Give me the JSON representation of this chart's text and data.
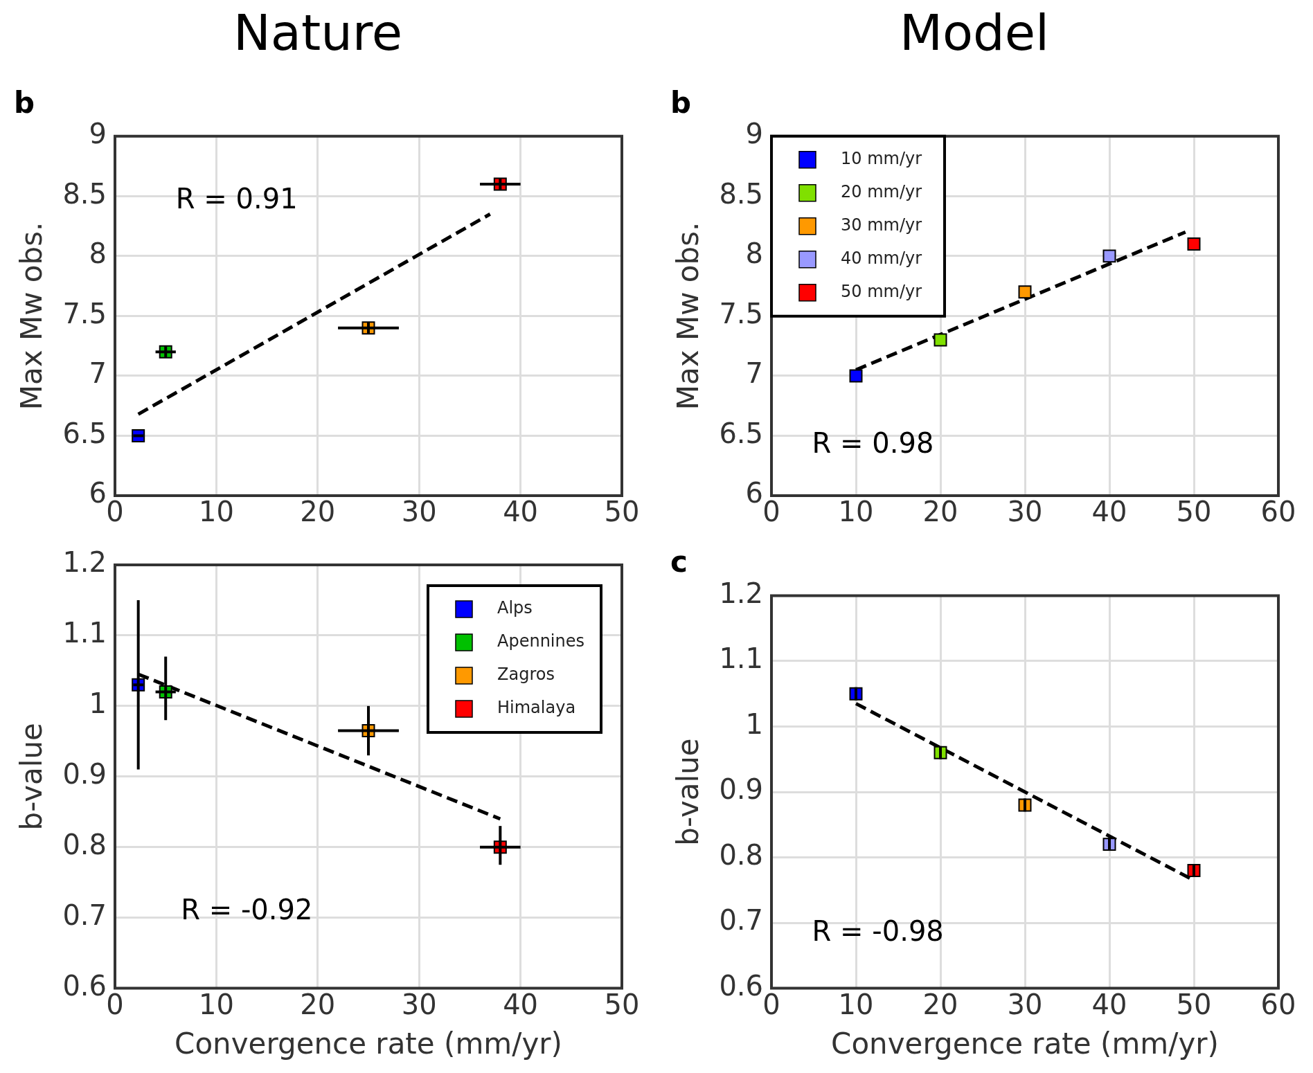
{
  "chart_data": [
    {
      "type": "scatter",
      "title": "Nature",
      "subtitle": "b",
      "ylabel": "Max Mw obs.",
      "annotations": [
        "R = 0.91"
      ],
      "xlim": [
        0,
        50
      ],
      "xticks": [
        0,
        10,
        20,
        30,
        40,
        50
      ],
      "ylim": [
        6,
        9
      ],
      "yticks": [
        6,
        6.5,
        7,
        7.5,
        8,
        8.5,
        9
      ],
      "grid": true,
      "marker": "square",
      "series": [
        {
          "color": "#0000ff",
          "x": [
            2.3
          ],
          "values": [
            6.5
          ],
          "xerrors": [
            0.5
          ]
        },
        {
          "color": "#00c000",
          "x": [
            5
          ],
          "values": [
            7.2
          ],
          "xerrors": [
            1
          ],
          "errors": [
            0.05
          ]
        },
        {
          "color": "#ff9900",
          "x": [
            25
          ],
          "values": [
            7.4
          ],
          "xerrors": [
            3
          ],
          "errors": [
            0.05
          ]
        },
        {
          "color": "#ff0000",
          "x": [
            38
          ],
          "values": [
            8.6
          ],
          "xerrors": [
            2
          ],
          "errors": [
            0.05
          ]
        },
        {
          "type": "line",
          "color": "#000000",
          "marker": "none",
          "line_style": "dashed",
          "x": [
            2.3,
            37
          ],
          "values": [
            6.68,
            8.35
          ]
        }
      ]
    },
    {
      "type": "scatter",
      "title": "Model",
      "subtitle": "b",
      "ylabel": "Max Mw obs.",
      "annotations": [
        "R = 0.98"
      ],
      "xlim": [
        0,
        60
      ],
      "xticks": [
        0,
        10,
        20,
        30,
        40,
        50,
        60
      ],
      "ylim": [
        6,
        9
      ],
      "yticks": [
        6,
        6.5,
        7,
        7.5,
        8,
        8.5,
        9
      ],
      "grid": true,
      "marker": "square",
      "legend": "top left",
      "series": [
        {
          "name": "10 mm/yr",
          "color": "#0000ff",
          "x": [
            10
          ],
          "values": [
            7.0
          ]
        },
        {
          "name": "20 mm/yr",
          "color": "#80e000",
          "x": [
            20
          ],
          "values": [
            7.3
          ]
        },
        {
          "name": "30 mm/yr",
          "color": "#ff9900",
          "x": [
            30
          ],
          "values": [
            7.7
          ]
        },
        {
          "name": "40 mm/yr",
          "color": "#9999ff",
          "x": [
            40
          ],
          "values": [
            8.0
          ]
        },
        {
          "name": "50 mm/yr",
          "color": "#ff0000",
          "x": [
            50
          ],
          "values": [
            8.1
          ]
        },
        {
          "type": "line",
          "color": "#000000",
          "marker": "none",
          "line_style": "dashed",
          "x": [
            10,
            49
          ],
          "values": [
            7.05,
            8.2
          ]
        }
      ]
    },
    {
      "type": "scatter",
      "xlabel": "Convergence rate (mm/yr)",
      "ylabel": "b-value",
      "annotations": [
        "R = -0.92"
      ],
      "xlim": [
        0,
        50
      ],
      "xticks": [
        0,
        10,
        20,
        30,
        40,
        50
      ],
      "ylim": [
        0.6,
        1.2
      ],
      "yticks": [
        0.6,
        0.7,
        0.8,
        0.9,
        1,
        1.1,
        1.2
      ],
      "grid": true,
      "marker": "square",
      "legend": "top right",
      "series": [
        {
          "name": "Alps",
          "color": "#0000ff",
          "x": [
            2.3
          ],
          "values": [
            1.03
          ],
          "xerrors": [
            0.5
          ],
          "errors": [
            [
              0.91,
              1.15
            ]
          ]
        },
        {
          "name": "Apennines",
          "color": "#00c000",
          "x": [
            5
          ],
          "values": [
            1.02
          ],
          "xerrors": [
            1
          ],
          "errors": [
            [
              0.98,
              1.07
            ]
          ]
        },
        {
          "name": "Zagros",
          "color": "#ff9900",
          "x": [
            25
          ],
          "values": [
            0.965
          ],
          "xerrors": [
            3
          ],
          "errors": [
            [
              0.93,
              1.0
            ]
          ]
        },
        {
          "name": "Himalaya",
          "color": "#ff0000",
          "x": [
            38
          ],
          "values": [
            0.8
          ],
          "xerrors": [
            2
          ],
          "errors": [
            [
              0.775,
              0.83
            ]
          ]
        },
        {
          "type": "line",
          "color": "#000000",
          "marker": "none",
          "line_style": "dashed",
          "x": [
            2.3,
            38
          ],
          "values": [
            1.045,
            0.84
          ]
        }
      ]
    },
    {
      "type": "scatter",
      "subtitle": "c",
      "xlabel": "Convergence rate (mm/yr)",
      "ylabel": "b-value",
      "annotations": [
        "R = -0.98"
      ],
      "xlim": [
        0,
        60
      ],
      "xticks": [
        0,
        10,
        20,
        30,
        40,
        50,
        60
      ],
      "ylim": [
        0.6,
        1.2
      ],
      "yticks": [
        0.6,
        0.7,
        0.8,
        0.9,
        1,
        1.1,
        1.2
      ],
      "grid": true,
      "marker": "square",
      "series": [
        {
          "color": "#0000ff",
          "x": [
            10
          ],
          "values": [
            1.05
          ],
          "errors": [
            0.01
          ]
        },
        {
          "color": "#80e000",
          "x": [
            20
          ],
          "values": [
            0.96
          ],
          "errors": [
            0.01
          ]
        },
        {
          "color": "#ff9900",
          "x": [
            30
          ],
          "values": [
            0.88
          ],
          "errors": [
            0.01
          ]
        },
        {
          "color": "#9999ff",
          "x": [
            40
          ],
          "values": [
            0.82
          ],
          "errors": [
            0.01
          ]
        },
        {
          "color": "#ff0000",
          "x": [
            50
          ],
          "values": [
            0.78
          ],
          "errors": [
            0.01
          ]
        },
        {
          "type": "line",
          "color": "#000000",
          "marker": "none",
          "line_style": "dashed",
          "x": [
            10,
            50
          ],
          "values": [
            1.035,
            0.765
          ]
        }
      ]
    }
  ]
}
